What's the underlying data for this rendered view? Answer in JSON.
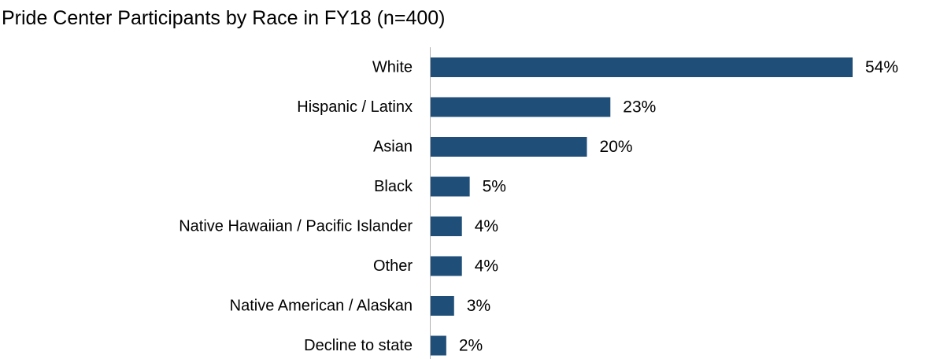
{
  "chart_data": {
    "type": "bar",
    "orientation": "horizontal",
    "title": "Pride Center Participants by Race in FY18 (n=400)",
    "categories": [
      "White",
      "Hispanic / Latinx",
      "Asian",
      "Black",
      "Native Hawaiian / Pacific Islander",
      "Other",
      "Native American / Alaskan",
      "Decline to state"
    ],
    "values": [
      54,
      23,
      20,
      5,
      4,
      4,
      3,
      2
    ],
    "value_labels": [
      "54%",
      "23%",
      "20%",
      "5%",
      "4%",
      "4%",
      "3%",
      "2%"
    ],
    "unit": "%",
    "xlim": [
      0,
      60
    ],
    "bar_color": "#1f4e79",
    "axis_color": "#b0b0b0",
    "grid": false,
    "legend": "none"
  }
}
